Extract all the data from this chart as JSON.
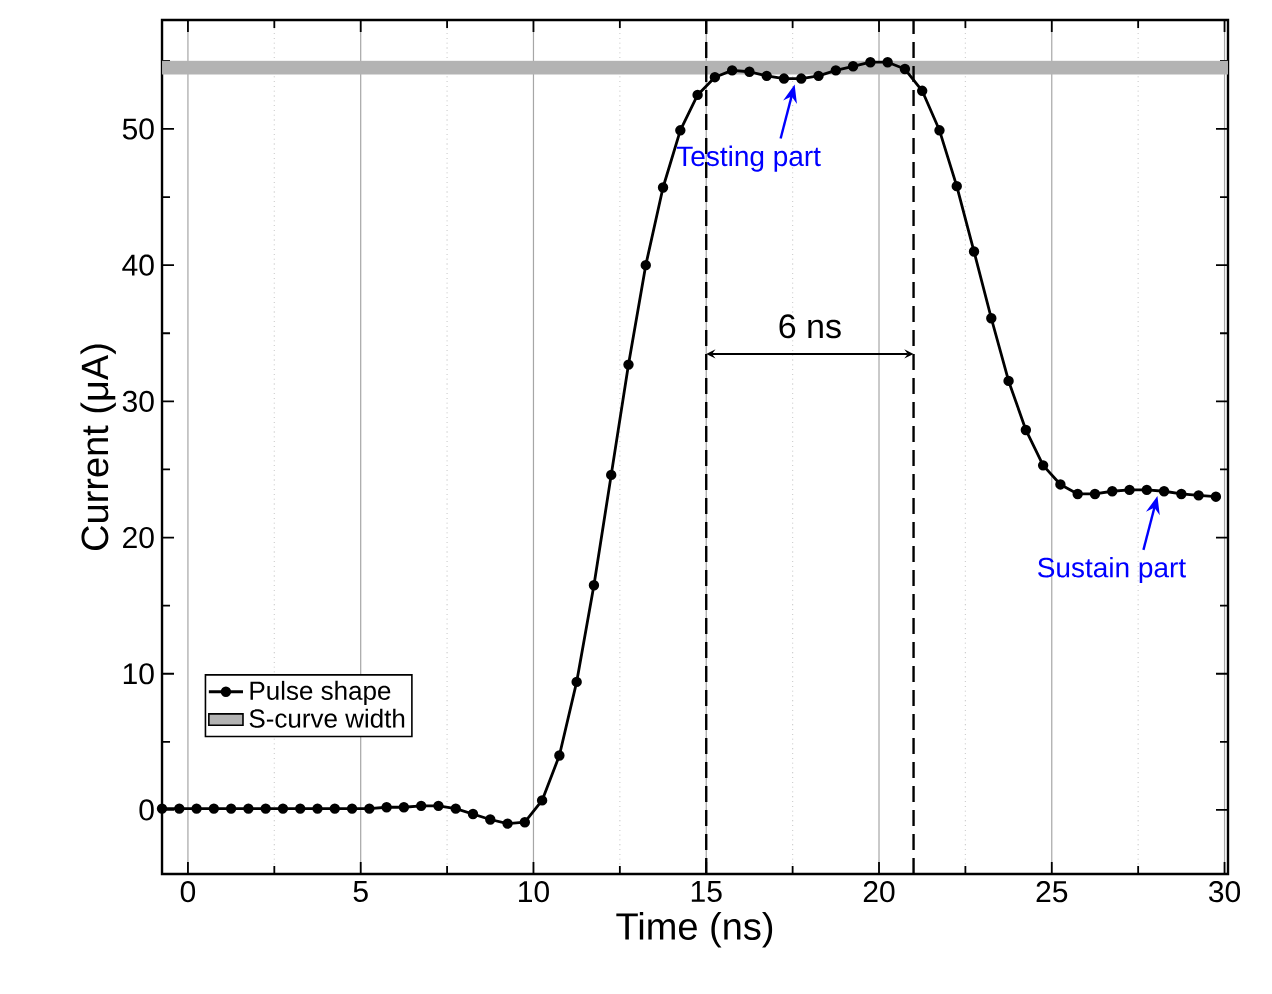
{
  "chart_data": {
    "type": "line",
    "xlabel": "Time (ns)",
    "ylabel": "Current (μA)",
    "x": [
      -0.75,
      -0.25,
      0.25,
      0.75,
      1.25,
      1.75,
      2.25,
      2.75,
      3.25,
      3.75,
      4.25,
      4.75,
      5.25,
      5.75,
      6.25,
      6.75,
      7.25,
      7.75,
      8.25,
      8.75,
      9.25,
      9.75,
      10.25,
      10.75,
      11.25,
      11.75,
      12.25,
      12.75,
      13.25,
      13.75,
      14.25,
      14.75,
      15.25,
      15.75,
      16.25,
      16.75,
      17.25,
      17.75,
      18.25,
      18.75,
      19.25,
      19.75,
      20.25,
      20.75,
      21.25,
      21.75,
      22.25,
      22.75,
      23.25,
      23.75,
      24.25,
      24.75,
      25.25,
      25.75,
      26.25,
      26.75,
      27.25,
      27.75,
      28.25,
      28.75,
      29.25,
      29.75
    ],
    "series": [
      {
        "name": "Pulse shape",
        "color": "#000000",
        "marker": "circle",
        "line_style": "solid",
        "values": [
          0.1,
          0.1,
          0.1,
          0.1,
          0.1,
          0.1,
          0.1,
          0.1,
          0.1,
          0.1,
          0.1,
          0.1,
          0.1,
          0.2,
          0.2,
          0.3,
          0.3,
          0.1,
          -0.3,
          -0.7,
          -1.0,
          -0.9,
          0.7,
          4.0,
          9.4,
          16.5,
          24.6,
          32.7,
          40.0,
          45.7,
          49.9,
          52.5,
          53.8,
          54.3,
          54.2,
          53.9,
          53.7,
          53.7,
          53.9,
          54.3,
          54.6,
          54.9,
          54.9,
          54.4,
          52.8,
          49.9,
          45.8,
          41.0,
          36.1,
          31.5,
          27.9,
          25.3,
          23.9,
          23.2,
          23.2,
          23.4,
          23.5,
          23.5,
          23.4,
          23.2,
          23.1,
          23.0
        ]
      }
    ],
    "xlim": [
      -0.75,
      30.1
    ],
    "ylim": [
      -4.7,
      58
    ],
    "xticks": [
      0,
      {
        "value": 2.5,
        "label": null
      },
      5,
      {
        "value": 7.5,
        "label": null
      },
      10,
      {
        "value": 12.5,
        "label": null
      },
      15,
      {
        "value": 17.5,
        "label": null
      },
      20,
      {
        "value": 22.5,
        "label": null
      },
      25,
      {
        "value": 27.5,
        "label": null
      },
      30
    ],
    "yticks": [
      0,
      {
        "value": 5,
        "label": null
      },
      10,
      {
        "value": 15,
        "label": null
      },
      20,
      {
        "value": 25,
        "label": null
      },
      30,
      {
        "value": 35,
        "label": null
      },
      40,
      {
        "value": 45,
        "label": null
      },
      50,
      {
        "value": 55,
        "label": null
      }
    ],
    "grid": "x",
    "legend": "bottom left",
    "bands": [
      {
        "axis": "y",
        "from": 54.0,
        "to": 55.0,
        "label": "S-curve width",
        "color": "#b3b3b3"
      }
    ],
    "ref_lines": [
      {
        "axis": "x",
        "value": 15,
        "line_style": "dashed"
      },
      {
        "axis": "x",
        "value": 21,
        "line_style": "dashed"
      }
    ],
    "annotations": [
      "6 ns",
      {
        "text": "Testing part",
        "x": 17.5,
        "y": 53.7
      },
      {
        "text": "Sustain part",
        "x": 28,
        "y": 23.5
      }
    ]
  }
}
